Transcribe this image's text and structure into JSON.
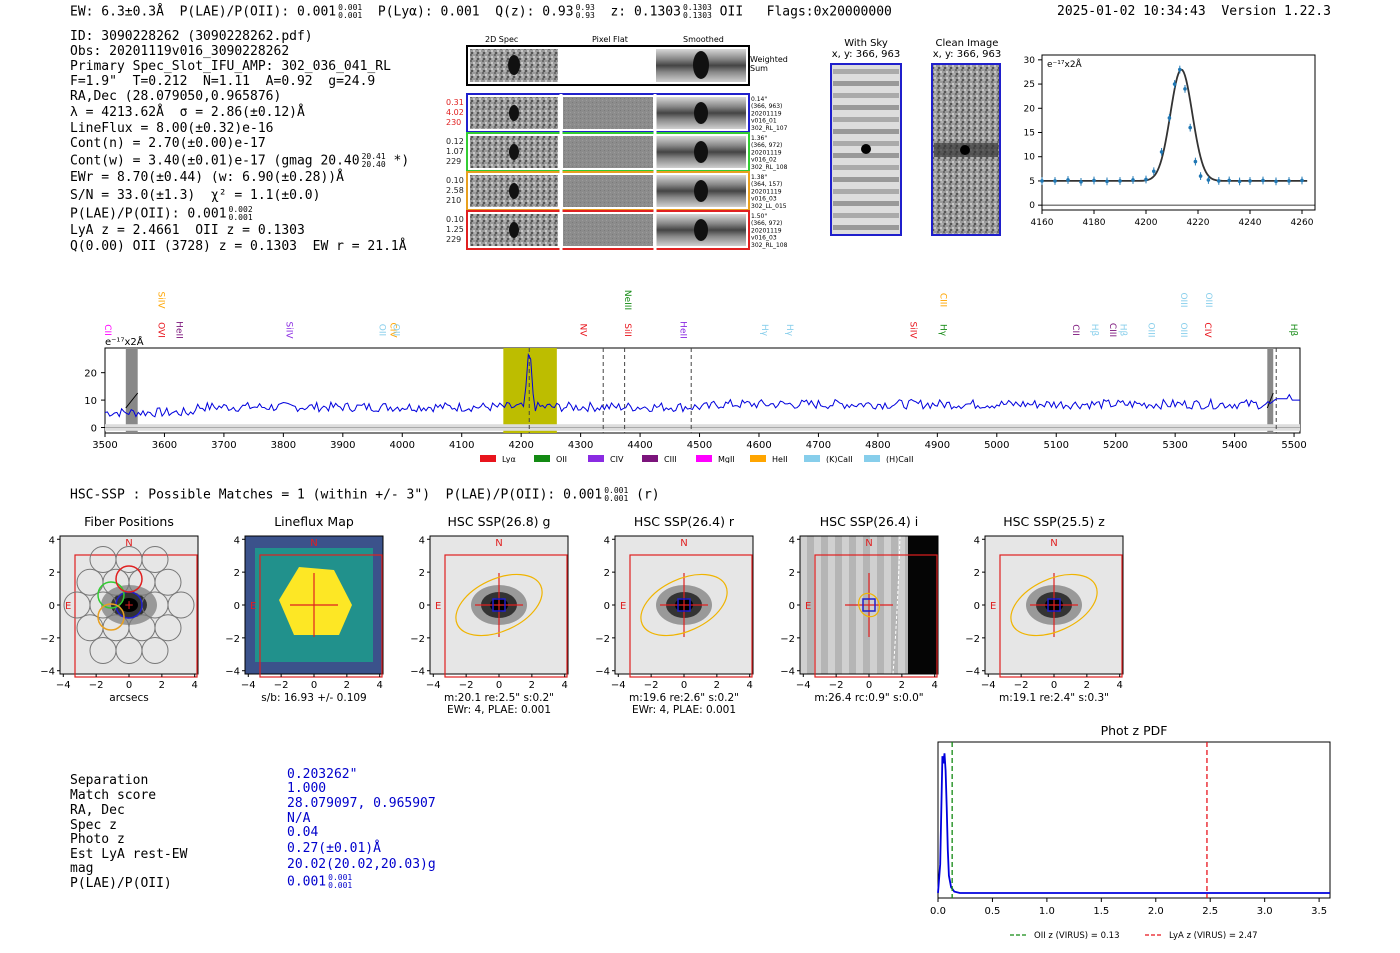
{
  "header": {
    "ew": "EW: 6.3±0.3Å",
    "plae_label": "P(LAE)/P(OII): 0.001",
    "plae_up": "0.001",
    "plae_dn": "0.001",
    "plya": "P(Lyα): 0.001",
    "qz_label": "Q(z): 0.93",
    "qz_up": "0.93",
    "qz_dn": "0.93",
    "z_label": "z: 0.1303",
    "z_up": "0.1303",
    "z_dn": "0.1303",
    "z_line": "OII",
    "flags": "Flags:0x20000000",
    "datetime": "2025-01-02 10:34:43",
    "version": "Version 1.22.3"
  },
  "info": {
    "id": "ID: 3090228262 (3090228262.pdf)",
    "obs": "Obs: 20201119v016_3090228262",
    "slot": "Primary Spec_Slot_IFU_AMP: 302_036_041_RL",
    "params": "F=1.9\"  T=0.212  N=1.11  A=0.92  g=24.9",
    "radec": "RA,Dec (28.079050,0.965876)",
    "lambda": "λ = 4213.62Å  σ = 2.86(±0.12)Å",
    "lineflux": "LineFlux = 8.00(±0.32)e-16",
    "contn": "Cont(n) = 2.70(±0.00)e-17",
    "contw": "Cont(w) = 3.40(±0.01)e-17 (gmag 20.40",
    "contw_up": "20.41",
    "contw_dn": "20.40",
    "contw_end": "*)",
    "ewr": "EWr = 8.70(±0.44) (w: 6.90(±0.28))Å",
    "sn": "S/N = 33.0(±1.3)  χ² = 1.1(±0.0)",
    "plae": "P(LAE)/P(OII): 0.001",
    "plae_up": "0.002",
    "plae_dn": "0.001",
    "lya_z": "LyA z = 2.4661  OII z = 0.1303",
    "q_line": "Q(0.00) OII (3728) z = 0.1303  EW r = 21.1Å"
  },
  "spec_panel": {
    "col_2d": "2D Spec",
    "col_flat": "Pixel Flat",
    "col_smooth": "Smoothed",
    "weighted": "Weighted",
    "sum": "Sum",
    "rows": [
      {
        "l1": "0.31",
        "l2": "4.02",
        "l3": "230",
        "r1": "0.14\"",
        "r2": "(366, 963)",
        "r3": "20201119",
        "r4": "v016_01",
        "r5": "302_RL_107",
        "color": "#1f1fcc"
      },
      {
        "l1": "0.12",
        "l2": "1.07",
        "l3": "229",
        "r1": "1.36\"",
        "r2": "(366, 972)",
        "r3": "20201119",
        "r4": "v016_02",
        "r5": "302_RL_108",
        "color": "#33cc33"
      },
      {
        "l1": "0.10",
        "l2": "2.58",
        "l3": "210",
        "r1": "1.38\"",
        "r2": "(364, 157)",
        "r3": "20201119",
        "r4": "v016_03",
        "r5": "302_LL_015",
        "color": "#e8a020"
      },
      {
        "l1": "0.10",
        "l2": "1.25",
        "l3": "229",
        "r1": "1.50\"",
        "r2": "(366, 972)",
        "r3": "20201119",
        "r4": "v016_03",
        "r5": "302_RL_108",
        "color": "#e02020"
      }
    ]
  },
  "sky": {
    "with_sky": "With Sky",
    "clean": "Clean Image",
    "coords1": "x, y: 366, 963",
    "coords2": "x, y: 366, 963"
  },
  "zoom_plot": {
    "unit": "e⁻¹⁷x2Å"
  },
  "lines_labels": {
    "unit": "e⁻¹⁷x2Å"
  },
  "legend_items": [
    {
      "label": "Lyα",
      "color": "#e8141c"
    },
    {
      "label": "OII",
      "color": "#138a13"
    },
    {
      "label": "CIV",
      "color": "#8a2be2"
    },
    {
      "label": "CIII",
      "color": "#7b147b"
    },
    {
      "label": "MgII",
      "color": "#ff00ff"
    },
    {
      "label": "HeII",
      "color": "#ffa500"
    },
    {
      "label": "(K)CaII",
      "color": "#87ceeb"
    },
    {
      "label": "(H)CaII",
      "color": "#87ceeb"
    }
  ],
  "hsc": {
    "title": "HSC-SSP : Possible Matches = 1 (within +/- 3\")  P(LAE)/P(OII): 0.001",
    "up": "0.001",
    "dn": "0.001",
    "suffix": "(r)",
    "panels": [
      {
        "title": "Fiber Positions",
        "cap1": "arcsecs",
        "cap2": ""
      },
      {
        "title": "Lineflux Map",
        "cap1": "s/b: 16.93 +/- 0.109",
        "cap2": ""
      },
      {
        "title": "HSC SSP(26.8) g",
        "cap1": "m:20.1  re:2.5\"  s:0.2\"",
        "cap2": "EWr: 4, PLAE: 0.001"
      },
      {
        "title": "HSC SSP(26.4) r",
        "cap1": "m:19.6  re:2.6\"  s:0.2\"",
        "cap2": "EWr: 4, PLAE: 0.001"
      },
      {
        "title": "HSC SSP(26.4) i",
        "cap1": "m:26.4 rc:0.9\"  s:0.0\"",
        "cap2": ""
      },
      {
        "title": "HSC SSP(25.5) z",
        "cap1": "m:19.1  re:2.4\"  s:0.3\"",
        "cap2": ""
      }
    ],
    "compass_n": "N",
    "compass_e": "E"
  },
  "match": {
    "labels": [
      "Separation",
      "Match score",
      "RA, Dec",
      "Spec z",
      "Photo z",
      "Est LyA rest-EW",
      "mag",
      "P(LAE)/P(OII)"
    ],
    "values": [
      "0.203262\"",
      "1.000",
      "28.079097, 0.965907",
      "N/A",
      "0.04",
      "0.27(±0.01)Å",
      "20.02(20.02,20.03)g",
      "0.001"
    ],
    "plae_up": "0.001",
    "plae_dn": "0.001"
  },
  "chart_data": [
    {
      "type": "line",
      "name": "emission-zoom",
      "x": [
        4160,
        4165,
        4170,
        4175,
        4180,
        4185,
        4190,
        4195,
        4200,
        4203,
        4206,
        4209,
        4211,
        4213,
        4215,
        4217,
        4219,
        4221,
        4224,
        4228,
        4232,
        4236,
        4240,
        4245,
        4250,
        4255,
        4260
      ],
      "values": [
        5,
        5,
        5.2,
        4.8,
        5.1,
        4.9,
        5,
        5.2,
        5.3,
        7,
        11,
        18,
        25,
        28,
        24,
        16,
        9,
        6,
        5.2,
        5,
        5.1,
        4.9,
        5,
        5.1,
        4.9,
        5,
        5.1
      ],
      "xlim": [
        4160,
        4265
      ],
      "ylim": [
        -1,
        31
      ],
      "xticks": [
        4160,
        4180,
        4200,
        4220,
        4240,
        4260
      ],
      "yticks": [
        0,
        5,
        10,
        15,
        20,
        25,
        30
      ],
      "ylabel": "e⁻¹⁷x2Å"
    },
    {
      "type": "line",
      "name": "full-spectrum",
      "xlim": [
        3500,
        5510
      ],
      "ylim": [
        -2,
        29
      ],
      "xticks": [
        3500,
        3600,
        3700,
        3800,
        3900,
        4000,
        4100,
        4200,
        4300,
        4400,
        4500,
        4600,
        4700,
        4800,
        4900,
        5000,
        5100,
        5200,
        5300,
        5400,
        5500
      ],
      "yticks": [
        0,
        10,
        20
      ],
      "peak_x": 4213.6,
      "peak_y": 28,
      "continuum": 7.5,
      "highlight": [
        4170,
        4260
      ],
      "masked": [
        [
          3535,
          3555
        ],
        [
          5455,
          5465
        ]
      ],
      "dashed_lines": [
        4213.6,
        4338,
        4374,
        4486,
        5470
      ],
      "line_labels": [
        {
          "label": "CII",
          "x": 3500,
          "row": "low",
          "color": "#ff00ff"
        },
        {
          "label": "SiIV",
          "x": 3590,
          "row": "high",
          "color": "#ffa500"
        },
        {
          "label": "OVI",
          "x": 3590,
          "row": "low",
          "color": "#e8141c"
        },
        {
          "label": "HeII",
          "x": 3620,
          "row": "low",
          "color": "#7b147b"
        },
        {
          "label": "SiIV",
          "x": 3805,
          "row": "low",
          "color": "#8a2be2"
        },
        {
          "label": "OII",
          "x": 3962,
          "row": "low",
          "color": "#87ceeb"
        },
        {
          "label": "CIV",
          "x": 3980,
          "row": "low",
          "color": "#ffa500"
        },
        {
          "label": "OII",
          "x": 3985,
          "row": "low",
          "color": "#87ceeb"
        },
        {
          "label": "NV",
          "x": 4300,
          "row": "low",
          "color": "#e8141c"
        },
        {
          "label": "NeIII",
          "x": 4375,
          "row": "high",
          "color": "#138a13"
        },
        {
          "label": "SiII",
          "x": 4375,
          "row": "low",
          "color": "#e8141c"
        },
        {
          "label": "HeII",
          "x": 4468,
          "row": "low",
          "color": "#8a2be2"
        },
        {
          "label": "Hγ",
          "x": 4605,
          "row": "low",
          "color": "#87ceeb"
        },
        {
          "label": "Hγ",
          "x": 4647,
          "row": "low",
          "color": "#87ceeb"
        },
        {
          "label": "SiIV",
          "x": 4855,
          "row": "low",
          "color": "#e8141c"
        },
        {
          "label": "CIII",
          "x": 4905,
          "row": "high",
          "color": "#ffa500"
        },
        {
          "label": "Hγ",
          "x": 4905,
          "row": "low",
          "color": "#138a13"
        },
        {
          "label": "CII",
          "x": 5128,
          "row": "low",
          "color": "#7b147b"
        },
        {
          "label": "Hβ",
          "x": 5160,
          "row": "low",
          "color": "#87ceeb"
        },
        {
          "label": "CIII",
          "x": 5190,
          "row": "low",
          "color": "#7b147b"
        },
        {
          "label": "Hβ",
          "x": 5208,
          "row": "low",
          "color": "#87ceeb"
        },
        {
          "label": "OIII",
          "x": 5255,
          "row": "low",
          "color": "#87ceeb"
        },
        {
          "label": "OIII",
          "x": 5310,
          "row": "high",
          "color": "#87ceeb"
        },
        {
          "label": "OIII",
          "x": 5310,
          "row": "low",
          "color": "#87ceeb"
        },
        {
          "label": "OIII",
          "x": 5352,
          "row": "high",
          "color": "#87ceeb"
        },
        {
          "label": "CIV",
          "x": 5350,
          "row": "low",
          "color": "#e8141c"
        },
        {
          "label": "Hβ",
          "x": 5495,
          "row": "low",
          "color": "#138a13"
        }
      ]
    },
    {
      "type": "line",
      "name": "photo-z-pdf",
      "title": "Phot z PDF",
      "xlim": [
        0,
        3.6
      ],
      "xticks": [
        0.0,
        0.5,
        1.0,
        1.5,
        2.0,
        2.5,
        3.0,
        3.5
      ],
      "x": [
        0,
        0.02,
        0.04,
        0.05,
        0.06,
        0.07,
        0.08,
        0.09,
        0.1,
        0.12,
        0.15,
        0.2,
        0.5,
        1,
        2,
        3,
        3.6
      ],
      "values": [
        0,
        0.2,
        0.95,
        0.9,
        0.97,
        0.85,
        0.6,
        0.3,
        0.12,
        0.04,
        0.01,
        0,
        0,
        0,
        0,
        0,
        0
      ],
      "vlines": [
        {
          "x": 0.13,
          "label": "OII z (VIRUS) = 0.13",
          "color": "#138a13"
        },
        {
          "x": 2.47,
          "label": "LyA z (VIRUS) = 2.47",
          "color": "#e8141c"
        }
      ]
    }
  ]
}
